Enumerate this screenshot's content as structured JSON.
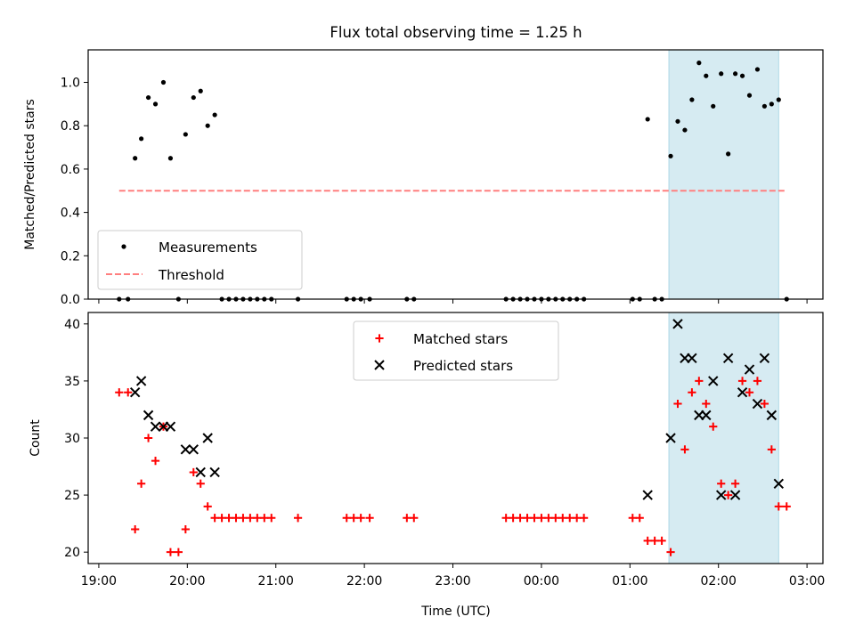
{
  "figure": {
    "title": "Flux total observing time = 1.25 h",
    "xlabel": "Time (UTC)"
  },
  "colors": {
    "measurement": "#000000",
    "threshold": "#ff7f7f",
    "matched": "#ff0000",
    "predicted": "#000000",
    "highlight": "#add8e6"
  },
  "chart_data": [
    {
      "type": "scatter",
      "panel": "top",
      "ylabel": "Matched/Predicted stars",
      "x_unit": "hours since 19:00 UTC",
      "x_ticks": [
        "19:00",
        "20:00",
        "21:00",
        "22:00",
        "23:00",
        "00:00",
        "01:00",
        "02:00",
        "03:00"
      ],
      "y_ticks": [
        "0.0",
        "0.2",
        "0.4",
        "0.6",
        "0.8",
        "1.0"
      ],
      "xlim": [
        -0.12,
        8.18
      ],
      "ylim": [
        0,
        1.15
      ],
      "legend": {
        "position": "lower-left",
        "entries": [
          "Measurements",
          "Threshold"
        ]
      },
      "threshold": {
        "name": "Threshold",
        "y": 0.5,
        "x_range": [
          0.23,
          7.77
        ]
      },
      "highlight_span": [
        6.44,
        7.68
      ],
      "series": [
        {
          "name": "Measurements",
          "points": [
            [
              0.23,
              0.0
            ],
            [
              0.33,
              0.0
            ],
            [
              0.41,
              0.65
            ],
            [
              0.48,
              0.74
            ],
            [
              0.56,
              0.93
            ],
            [
              0.64,
              0.9
            ],
            [
              0.73,
              1.0
            ],
            [
              0.81,
              0.65
            ],
            [
              0.9,
              0.0
            ],
            [
              0.98,
              0.76
            ],
            [
              1.07,
              0.93
            ],
            [
              1.15,
              0.96
            ],
            [
              1.23,
              0.8
            ],
            [
              1.31,
              0.85
            ],
            [
              1.39,
              0.0
            ],
            [
              1.47,
              0.0
            ],
            [
              1.55,
              0.0
            ],
            [
              1.63,
              0.0
            ],
            [
              1.71,
              0.0
            ],
            [
              1.79,
              0.0
            ],
            [
              1.87,
              0.0
            ],
            [
              1.95,
              0.0
            ],
            [
              2.25,
              0.0
            ],
            [
              2.8,
              0.0
            ],
            [
              2.88,
              0.0
            ],
            [
              2.96,
              0.0
            ],
            [
              3.06,
              0.0
            ],
            [
              3.48,
              0.0
            ],
            [
              3.56,
              0.0
            ],
            [
              4.6,
              0.0
            ],
            [
              4.68,
              0.0
            ],
            [
              4.76,
              0.0
            ],
            [
              4.84,
              0.0
            ],
            [
              4.92,
              0.0
            ],
            [
              5.0,
              0.0
            ],
            [
              5.08,
              0.0
            ],
            [
              5.16,
              0.0
            ],
            [
              5.24,
              0.0
            ],
            [
              5.32,
              0.0
            ],
            [
              5.4,
              0.0
            ],
            [
              5.48,
              0.0
            ],
            [
              6.03,
              0.0
            ],
            [
              6.11,
              0.0
            ],
            [
              6.2,
              0.83
            ],
            [
              6.28,
              0.0
            ],
            [
              6.36,
              0.0
            ],
            [
              6.46,
              0.66
            ],
            [
              6.54,
              0.82
            ],
            [
              6.62,
              0.78
            ],
            [
              6.7,
              0.92
            ],
            [
              6.78,
              1.09
            ],
            [
              6.86,
              1.03
            ],
            [
              6.94,
              0.89
            ],
            [
              7.03,
              1.04
            ],
            [
              7.11,
              0.67
            ],
            [
              7.19,
              1.04
            ],
            [
              7.27,
              1.03
            ],
            [
              7.35,
              0.94
            ],
            [
              7.44,
              1.06
            ],
            [
              7.52,
              0.89
            ],
            [
              7.6,
              0.9
            ],
            [
              7.68,
              0.92
            ],
            [
              7.77,
              0.0
            ]
          ]
        }
      ]
    },
    {
      "type": "scatter",
      "panel": "bottom",
      "ylabel": "Count",
      "x_unit": "hours since 19:00 UTC",
      "x_ticks": [
        "19:00",
        "20:00",
        "21:00",
        "22:00",
        "23:00",
        "00:00",
        "01:00",
        "02:00",
        "03:00"
      ],
      "y_ticks": [
        "20",
        "25",
        "30",
        "35",
        "40"
      ],
      "xlim": [
        -0.12,
        8.18
      ],
      "ylim": [
        19,
        41
      ],
      "legend": {
        "position": "upper-center",
        "entries": [
          "Matched stars",
          "Predicted stars"
        ]
      },
      "highlight_span": [
        6.44,
        7.68
      ],
      "series": [
        {
          "name": "Matched stars",
          "marker": "plus",
          "points": [
            [
              0.23,
              34
            ],
            [
              0.33,
              34
            ],
            [
              0.41,
              22
            ],
            [
              0.48,
              26
            ],
            [
              0.56,
              30
            ],
            [
              0.64,
              28
            ],
            [
              0.73,
              31
            ],
            [
              0.81,
              20
            ],
            [
              0.9,
              20
            ],
            [
              0.98,
              22
            ],
            [
              1.07,
              27
            ],
            [
              1.15,
              26
            ],
            [
              1.23,
              24
            ],
            [
              1.31,
              23
            ],
            [
              1.39,
              23
            ],
            [
              1.47,
              23
            ],
            [
              1.55,
              23
            ],
            [
              1.63,
              23
            ],
            [
              1.71,
              23
            ],
            [
              1.79,
              23
            ],
            [
              1.87,
              23
            ],
            [
              1.95,
              23
            ],
            [
              2.25,
              23
            ],
            [
              2.8,
              23
            ],
            [
              2.88,
              23
            ],
            [
              2.96,
              23
            ],
            [
              3.06,
              23
            ],
            [
              3.48,
              23
            ],
            [
              3.56,
              23
            ],
            [
              4.6,
              23
            ],
            [
              4.68,
              23
            ],
            [
              4.76,
              23
            ],
            [
              4.84,
              23
            ],
            [
              4.92,
              23
            ],
            [
              5.0,
              23
            ],
            [
              5.08,
              23
            ],
            [
              5.16,
              23
            ],
            [
              5.24,
              23
            ],
            [
              5.32,
              23
            ],
            [
              5.4,
              23
            ],
            [
              5.48,
              23
            ],
            [
              6.03,
              23
            ],
            [
              6.11,
              23
            ],
            [
              6.2,
              21
            ],
            [
              6.28,
              21
            ],
            [
              6.36,
              21
            ],
            [
              6.46,
              20
            ],
            [
              6.54,
              33
            ],
            [
              6.62,
              29
            ],
            [
              6.7,
              34
            ],
            [
              6.78,
              35
            ],
            [
              6.86,
              33
            ],
            [
              6.94,
              31
            ],
            [
              7.03,
              26
            ],
            [
              7.11,
              25
            ],
            [
              7.19,
              26
            ],
            [
              7.27,
              35
            ],
            [
              7.35,
              34
            ],
            [
              7.44,
              35
            ],
            [
              7.52,
              33
            ],
            [
              7.6,
              29
            ],
            [
              7.68,
              24
            ],
            [
              7.77,
              24
            ]
          ]
        },
        {
          "name": "Predicted stars",
          "marker": "x",
          "points": [
            [
              0.41,
              34
            ],
            [
              0.48,
              35
            ],
            [
              0.56,
              32
            ],
            [
              0.64,
              31
            ],
            [
              0.73,
              31
            ],
            [
              0.81,
              31
            ],
            [
              0.98,
              29
            ],
            [
              1.07,
              29
            ],
            [
              1.15,
              27
            ],
            [
              1.23,
              30
            ],
            [
              1.31,
              27
            ],
            [
              6.2,
              25
            ],
            [
              6.46,
              30
            ],
            [
              6.54,
              40
            ],
            [
              6.62,
              37
            ],
            [
              6.7,
              37
            ],
            [
              6.78,
              32
            ],
            [
              6.86,
              32
            ],
            [
              6.94,
              35
            ],
            [
              7.03,
              25
            ],
            [
              7.11,
              37
            ],
            [
              7.19,
              25
            ],
            [
              7.27,
              34
            ],
            [
              7.35,
              36
            ],
            [
              7.44,
              33
            ],
            [
              7.52,
              37
            ],
            [
              7.6,
              32
            ],
            [
              7.68,
              26
            ]
          ]
        }
      ]
    }
  ]
}
